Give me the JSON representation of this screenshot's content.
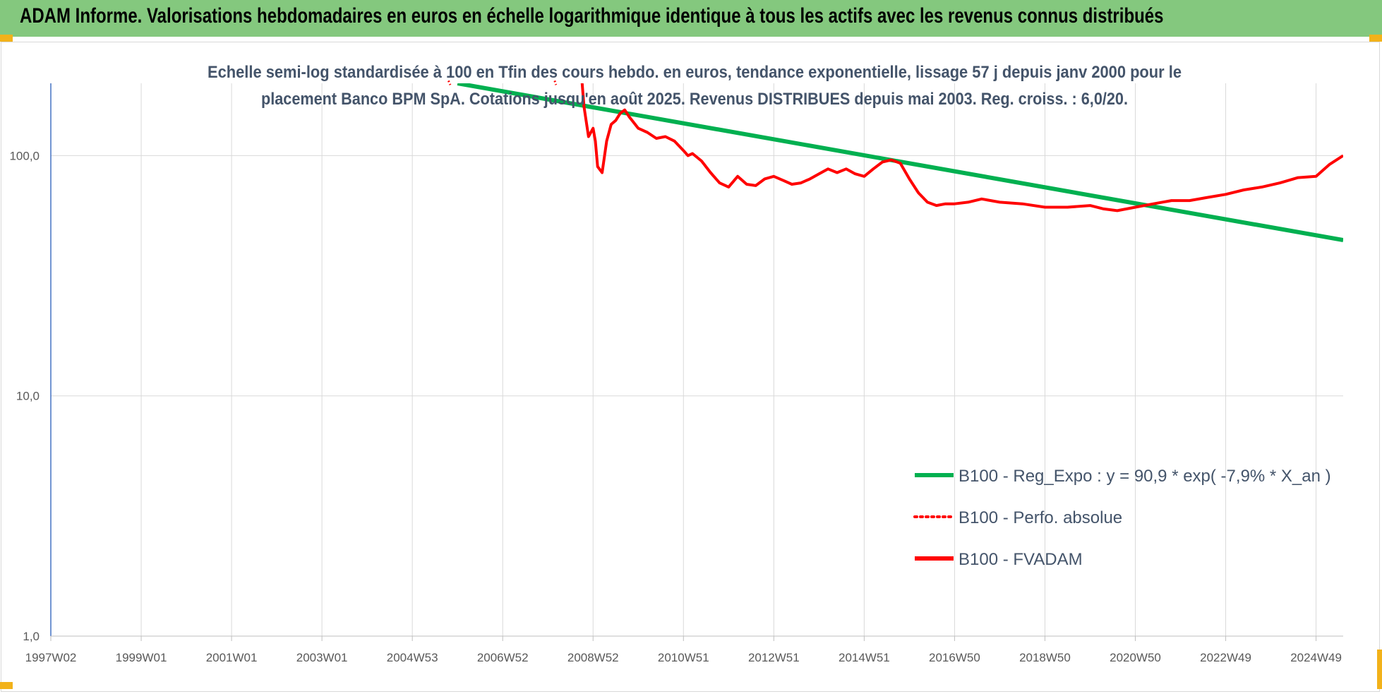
{
  "header": {
    "title": "ADAM Informe. Valorisations hebdomadaires en euros en échelle logarithmique identique à tous les actifs avec les revenus connus distribués"
  },
  "colors": {
    "banner": "#84c87e",
    "corner_marks": "#f2b21a",
    "trend": "#00b050",
    "fvadam": "#ff0000",
    "perf": "#ff0000",
    "grid": "#d9d9d9",
    "y_axis": "#4472c4"
  },
  "chart_data": {
    "type": "line",
    "subtitle_lines": [
      "Echelle semi-log standardisée à 100 en Tfin des cours hebdo. en euros, tendance exponentielle, lissage 57 j depuis janv 2000 pour le",
      "placement Banco BPM SpA. Cotations jusqu'en août 2025. Revenus DISTRIBUES depuis mai 2003. Reg. croiss. : 6,0/20."
    ],
    "y_scale": "log",
    "ylim": [
      1,
      200
    ],
    "y_ticks": [
      1,
      10,
      100
    ],
    "y_tick_labels": [
      "1,0",
      "10,0",
      "100,0"
    ],
    "x_range_years": [
      1997.0,
      2025.6
    ],
    "x_ticks": [
      {
        "label": "1997W02",
        "year": 1997.0
      },
      {
        "label": "1999W01",
        "year": 1999.0
      },
      {
        "label": "2001W01",
        "year": 2001.0
      },
      {
        "label": "2003W01",
        "year": 2003.0
      },
      {
        "label": "2004W53",
        "year": 2005.0
      },
      {
        "label": "2006W52",
        "year": 2007.0
      },
      {
        "label": "2008W52",
        "year": 2009.0
      },
      {
        "label": "2010W51",
        "year": 2011.0
      },
      {
        "label": "2012W51",
        "year": 2013.0
      },
      {
        "label": "2014W51",
        "year": 2015.0
      },
      {
        "label": "2016W50",
        "year": 2017.0
      },
      {
        "label": "2018W50",
        "year": 2019.0
      },
      {
        "label": "2020W50",
        "year": 2021.0
      },
      {
        "label": "2022W49",
        "year": 2023.0
      },
      {
        "label": "2024W49",
        "year": 2025.0
      }
    ],
    "legend_position": "bottom-right",
    "series": [
      {
        "name": "B100 - Reg_Expo : y = 90,9 * exp( -7,9% *  X_an )",
        "style": "solid-thick",
        "color": "#00b050",
        "x": [
          2006.0,
          2025.6
        ],
        "y": [
          200,
          44.5
        ]
      },
      {
        "name": "B100 - Perfo. absolue",
        "style": "dotted",
        "color": "#ff0000",
        "x": [
          2005.8,
          2005.84,
          2008.15,
          2008.18
        ],
        "y": [
          205,
          197,
          205,
          197
        ]
      },
      {
        "name": "B100 - FVADAM",
        "style": "solid-thick",
        "color": "#ff0000",
        "x": [
          2008.75,
          2008.8,
          2008.9,
          2009.0,
          2009.05,
          2009.1,
          2009.2,
          2009.3,
          2009.4,
          2009.5,
          2009.6,
          2009.7,
          2009.8,
          2010.0,
          2010.2,
          2010.4,
          2010.6,
          2010.8,
          2011.0,
          2011.1,
          2011.2,
          2011.4,
          2011.6,
          2011.8,
          2012.0,
          2012.2,
          2012.4,
          2012.6,
          2012.8,
          2013.0,
          2013.2,
          2013.4,
          2013.6,
          2013.8,
          2014.0,
          2014.2,
          2014.4,
          2014.6,
          2014.8,
          2015.0,
          2015.2,
          2015.4,
          2015.6,
          2015.8,
          2016.0,
          2016.2,
          2016.4,
          2016.6,
          2016.8,
          2017.0,
          2017.3,
          2017.6,
          2018.0,
          2018.5,
          2019.0,
          2019.5,
          2020.0,
          2020.3,
          2020.6,
          2021.0,
          2021.4,
          2021.8,
          2022.2,
          2022.6,
          2023.0,
          2023.4,
          2023.8,
          2024.2,
          2024.6,
          2025.0,
          2025.3,
          2025.6
        ],
        "y": [
          210,
          160,
          120,
          130,
          115,
          90,
          85,
          115,
          135,
          140,
          150,
          155,
          145,
          130,
          125,
          118,
          120,
          115,
          105,
          100,
          102,
          95,
          85,
          77,
          74,
          82,
          76,
          75,
          80,
          82,
          79,
          76,
          77,
          80,
          84,
          88,
          85,
          88,
          84,
          82,
          88,
          94,
          96,
          93,
          80,
          70,
          64,
          62,
          63,
          63,
          64,
          66,
          64,
          63,
          61,
          61,
          62,
          60,
          59,
          61,
          63,
          65,
          65,
          67,
          69,
          72,
          74,
          77,
          81,
          82,
          92,
          100
        ]
      }
    ]
  }
}
